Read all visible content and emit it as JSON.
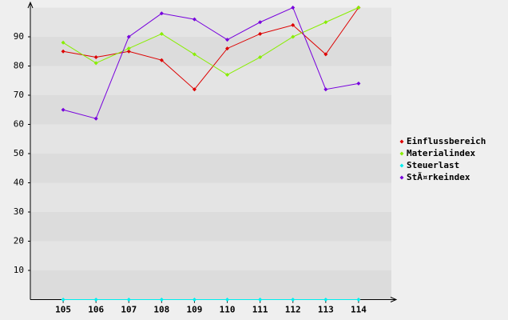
{
  "chart_data": {
    "type": "line",
    "categories": [
      "105",
      "106",
      "107",
      "108",
      "109",
      "110",
      "111",
      "112",
      "113",
      "114"
    ],
    "series": [
      {
        "name": "Einflussbereich",
        "color": "#dd0000",
        "values": [
          85,
          83,
          85,
          82,
          72,
          86,
          91,
          94,
          84,
          100
        ]
      },
      {
        "name": "Materialindex",
        "color": "#88ee00",
        "values": [
          88,
          81,
          86,
          91,
          84,
          77,
          83,
          90,
          95,
          100
        ]
      },
      {
        "name": "Steuerlast",
        "color": "#00eeee",
        "values": [
          0,
          0,
          0,
          0,
          0,
          0,
          0,
          0,
          0,
          0
        ]
      },
      {
        "name": "StÃ¤rkeindex",
        "color": "#7700dd",
        "values": [
          65,
          62,
          90,
          98,
          96,
          89,
          95,
          100,
          72,
          74
        ]
      }
    ],
    "ylim": [
      0,
      100
    ],
    "yticks": [
      10,
      20,
      30,
      40,
      50,
      60,
      70,
      80,
      90
    ]
  }
}
